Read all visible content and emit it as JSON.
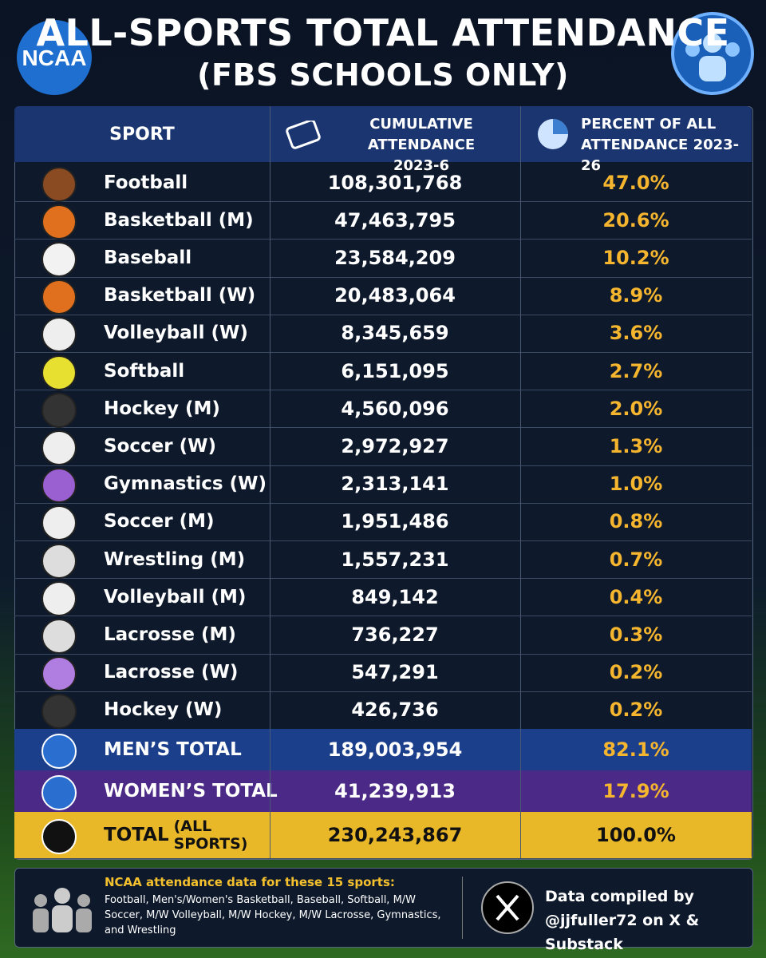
{
  "header": {
    "logo": "NCAA",
    "title": "ALL-SPORTS TOTAL ATTENDANCE",
    "subtitle": "(FBS SCHOOLS ONLY)"
  },
  "table": {
    "columns": [
      {
        "label": "SPORT"
      },
      {
        "label": "CUMULATIVE ATTENDANCE",
        "sublabel": "2023-6"
      },
      {
        "label": "PERCENT OF ALL",
        "sublabel": "ATTENDANCE 2023-26"
      }
    ],
    "rows": [
      [
        "Football",
        "108,301,768",
        "47.0%"
      ],
      [
        "Basketball (M)",
        "47,463,795",
        "20.6%"
      ],
      [
        "Baseball",
        "23,584,209",
        "10.2%"
      ],
      [
        "Basketball (W)",
        "20,483,064",
        "8.9%"
      ],
      [
        "Volleyball (W)",
        "8,345,659",
        "3.6%"
      ],
      [
        "Softball",
        "6,151,095",
        "2.7%"
      ],
      [
        "Hockey (M)",
        "4,560,096",
        "2.0%"
      ],
      [
        "Soccer (W)",
        "2,972,927",
        "1.3%"
      ],
      [
        "Gymnastics (W)",
        "2,313,141",
        "1.0%"
      ],
      [
        "Soccer (M)",
        "1,951,486",
        "0.8%"
      ],
      [
        "Wrestling (M)",
        "1,557,231",
        "0.7%"
      ],
      [
        "Volleyball (M)",
        "849,142",
        "0.4%"
      ],
      [
        "Lacrosse (M)",
        "736,227",
        "0.3%"
      ],
      [
        "Lacrosse (W)",
        "547,291",
        "0.2%"
      ],
      [
        "Hockey (W)",
        "426,736",
        "0.2%"
      ]
    ],
    "totals": [
      {
        "label": "MEN’S TOTAL",
        "attendance": "189,003,954",
        "percent": "82.1%"
      },
      {
        "label": "WOMEN’S TOTAL",
        "attendance": "41,239,913",
        "percent": "17.9%"
      },
      {
        "label": "TOTAL",
        "qualifier": "(ALL SPORTS)",
        "attendance": "230,243,867",
        "percent": "100.0%"
      }
    ]
  },
  "footer": {
    "note_title": "NCAA attendance data for these 15 sports:",
    "note_body": "Football, Men's/Women's Basketball, Baseball, Softball, M/W Soccer, M/W Volleyball, M/W Hockey, M/W Lacrosse, Gymnastics, and Wrestling",
    "credit_line1": "Data compiled by",
    "credit_line2": "@jjfuller72 on X & Substack"
  }
}
